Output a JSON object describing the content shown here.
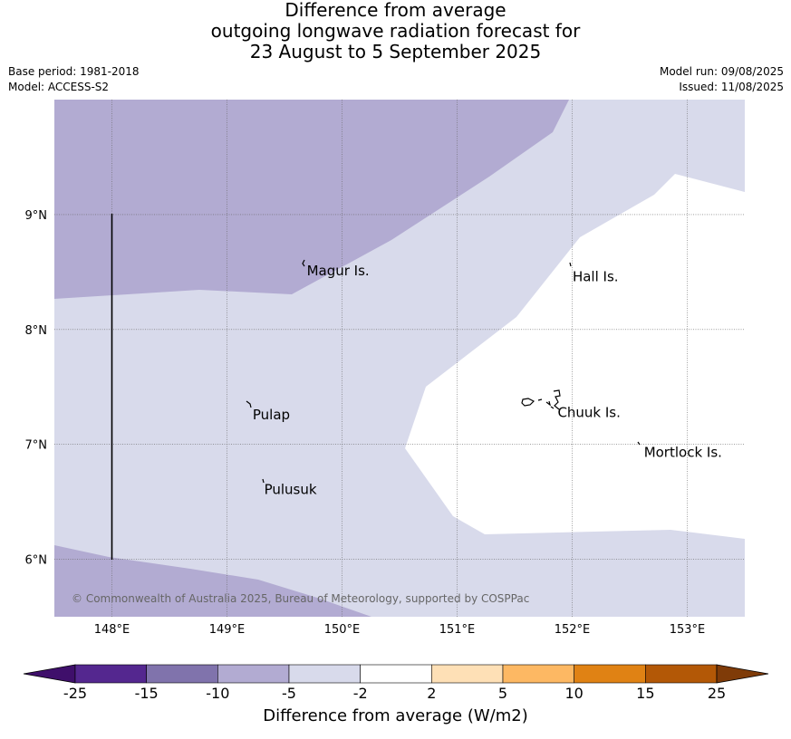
{
  "title": {
    "line1": "Difference from average",
    "line2": "outgoing longwave radiation forecast for",
    "line3": "23 August to 5 September 2025"
  },
  "info": {
    "base_period": "Base period: 1981-2018",
    "model": "Model: ACCESS-S2",
    "model_run": "Model run: 09/08/2025",
    "issued": "Issued: 11/08/2025"
  },
  "map": {
    "lon_range": [
      147.5,
      153.5
    ],
    "lat_range": [
      5.5,
      10.0
    ],
    "x_ticks": [
      "148°E",
      "149°E",
      "150°E",
      "151°E",
      "152°E",
      "153°E"
    ],
    "y_ticks": [
      "9°N",
      "8°N",
      "7°N",
      "6°N"
    ],
    "places": [
      {
        "name": "Magur Is.",
        "lon": 149.67,
        "lat": 8.58
      },
      {
        "name": "Hall Is.",
        "lon": 151.98,
        "lat": 8.53
      },
      {
        "name": "Pulap",
        "lon": 149.2,
        "lat": 7.33
      },
      {
        "name": "Chuuk Is.",
        "lon": 151.85,
        "lat": 7.35
      },
      {
        "name": "Mortlock Is.",
        "lon": 152.6,
        "lat": 7.0
      },
      {
        "name": "Pulusuk",
        "lon": 149.3,
        "lat": 6.68
      }
    ],
    "copyright": "© Commonwealth of Australia 2025, Bureau of Meteorology, supported by COSPPac",
    "grid": true
  },
  "colorbar": {
    "tick_labels": [
      "-25",
      "-15",
      "-10",
      "-5",
      "-2",
      "2",
      "5",
      "10",
      "15",
      "25"
    ],
    "colors": [
      "#3f0f6b",
      "#54278f",
      "#8073ac",
      "#b2abd2",
      "#d8daeb",
      "#ffffff",
      "#fee0b6",
      "#fdb863",
      "#e08214",
      "#b35806",
      "#7f3b08"
    ],
    "label": "Difference from average (W/m2)"
  }
}
